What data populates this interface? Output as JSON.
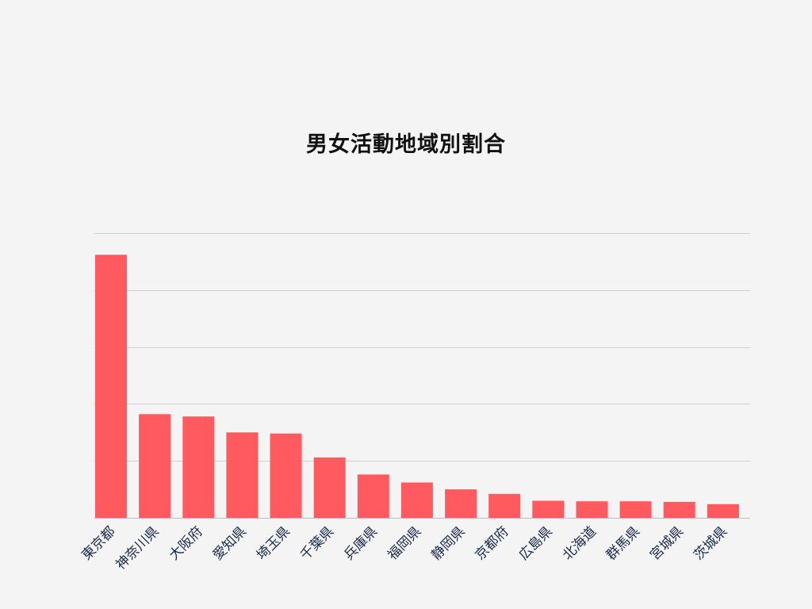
{
  "chart_data": {
    "type": "bar",
    "title": "男女活動地域別割合",
    "xlabel": "",
    "ylabel": "",
    "categories": [
      "東京都",
      "神奈川県",
      "大阪府",
      "愛知県",
      "埼玉県",
      "千葉県",
      "兵庫県",
      "福岡県",
      "静岡県",
      "京都府",
      "広島県",
      "北海道",
      "群馬県",
      "宮城県",
      "茨城県"
    ],
    "values": [
      23.1,
      9.1,
      8.9,
      7.5,
      7.4,
      5.3,
      3.8,
      3.1,
      2.5,
      2.1,
      1.5,
      1.45,
      1.45,
      1.4,
      1.2
    ],
    "ylim": [
      0,
      25
    ],
    "grid": true,
    "legend": "none",
    "colors": {
      "bar": "#ff5a5f"
    }
  }
}
